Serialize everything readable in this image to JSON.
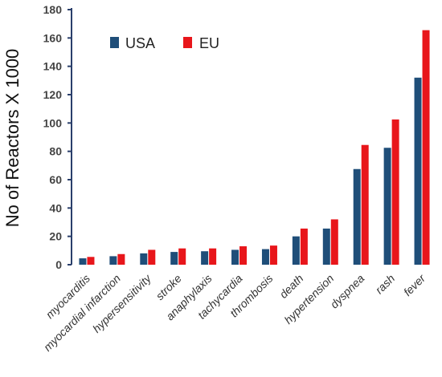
{
  "chart_data": {
    "type": "bar",
    "title": "",
    "xlabel": "",
    "ylabel": "No of Reactors X 1000",
    "ylim": [
      0,
      180
    ],
    "yticks": [
      0,
      20,
      40,
      60,
      80,
      100,
      120,
      140,
      160,
      180
    ],
    "categories": [
      "myocarditis",
      "myocardial infarction",
      "hypersensitivity",
      "stroke",
      "anaphylaxis",
      "tachycardia",
      "thrombosis",
      "death",
      "hypertension",
      "dyspnea",
      "rash",
      "fever"
    ],
    "series": [
      {
        "name": "USA",
        "color": "#1f4e79",
        "values": [
          4.5,
          6,
          8,
          9,
          9.5,
          10.5,
          11,
          20,
          25.5,
          67.5,
          82.5,
          132
        ]
      },
      {
        "name": "EU",
        "color": "#e8161b",
        "values": [
          5.5,
          7.5,
          10.5,
          11.5,
          11.5,
          13,
          13.5,
          25.5,
          32,
          84.5,
          102.5,
          165.5
        ]
      }
    ],
    "legend_position": "top-left",
    "grid": false
  }
}
